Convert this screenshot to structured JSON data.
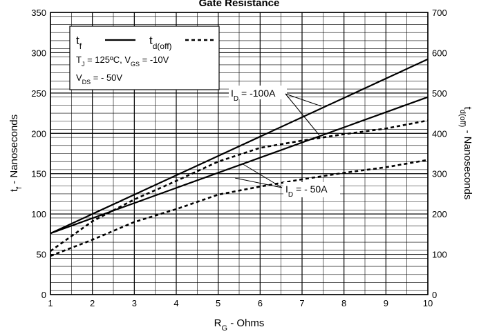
{
  "chart_data": {
    "type": "line",
    "title": "Gate Resistance",
    "xlabel": {
      "main": "R",
      "sub": "G",
      "rest": " - Ohms"
    },
    "ylabel_left": {
      "main": "t",
      "sub": "f",
      "rest": " - Nanoseconds"
    },
    "ylabel_right": {
      "main": "t",
      "sub": "d(off)",
      "rest": " - Nanoseconds"
    },
    "xlim": [
      1,
      10
    ],
    "ylim_left": [
      0,
      350
    ],
    "ylim_right": [
      0,
      700
    ],
    "x_ticks": [
      "1",
      "2",
      "3",
      "4",
      "5",
      "6",
      "7",
      "8",
      "9",
      "10"
    ],
    "y_left_ticks": [
      "0",
      "50",
      "100",
      "150",
      "200",
      "250",
      "300",
      "350"
    ],
    "y_right_ticks": [
      "0",
      "100",
      "200",
      "300",
      "400",
      "500",
      "600",
      "700"
    ],
    "grid": true,
    "series": [
      {
        "metric": "tf",
        "id": "-100A",
        "axis": "left",
        "style": "solid",
        "x": [
          1,
          10
        ],
        "y": [
          76,
          292
        ]
      },
      {
        "metric": "tf",
        "id": "-50A",
        "axis": "left",
        "style": "solid",
        "x": [
          1,
          10
        ],
        "y": [
          76,
          245
        ]
      },
      {
        "metric": "td(off)",
        "id": "-100A",
        "axis": "right",
        "style": "dashed",
        "x": [
          1,
          2,
          3,
          4,
          5,
          6,
          7,
          8,
          9,
          10
        ],
        "y": [
          108,
          182,
          236,
          282,
          330,
          364,
          382,
          398,
          412,
          432
        ]
      },
      {
        "metric": "td(off)",
        "id": "-50A",
        "axis": "right",
        "style": "dashed",
        "x": [
          1,
          2,
          3,
          4,
          5,
          6,
          7,
          8,
          9,
          10
        ],
        "y": [
          96,
          136,
          180,
          212,
          248,
          268,
          286,
          302,
          316,
          334
        ]
      }
    ],
    "legend": {
      "placement": "top-left",
      "tf": {
        "main": "t",
        "sub": "f"
      },
      "td": {
        "main": "t",
        "sub": "d(off)"
      },
      "cond1": {
        "a": "T",
        "a_sub": "J",
        "b": " = 125ºC,  V",
        "b_sub": "GS",
        "c": " = -10V"
      },
      "cond2": {
        "a": "V",
        "a_sub": "DS",
        "b": " = - 50V"
      }
    },
    "annotations": [
      {
        "main": "I",
        "sub": "D",
        "rest": " = -100A"
      },
      {
        "main": "I",
        "sub": "D",
        "rest": " = - 50A"
      }
    ]
  }
}
